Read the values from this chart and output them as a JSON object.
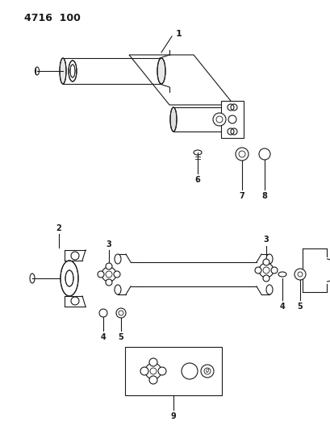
{
  "title": "4716  100",
  "bg": "#ffffff",
  "lc": "#1a1a1a",
  "fig_w": 4.09,
  "fig_h": 5.33,
  "dpi": 100
}
